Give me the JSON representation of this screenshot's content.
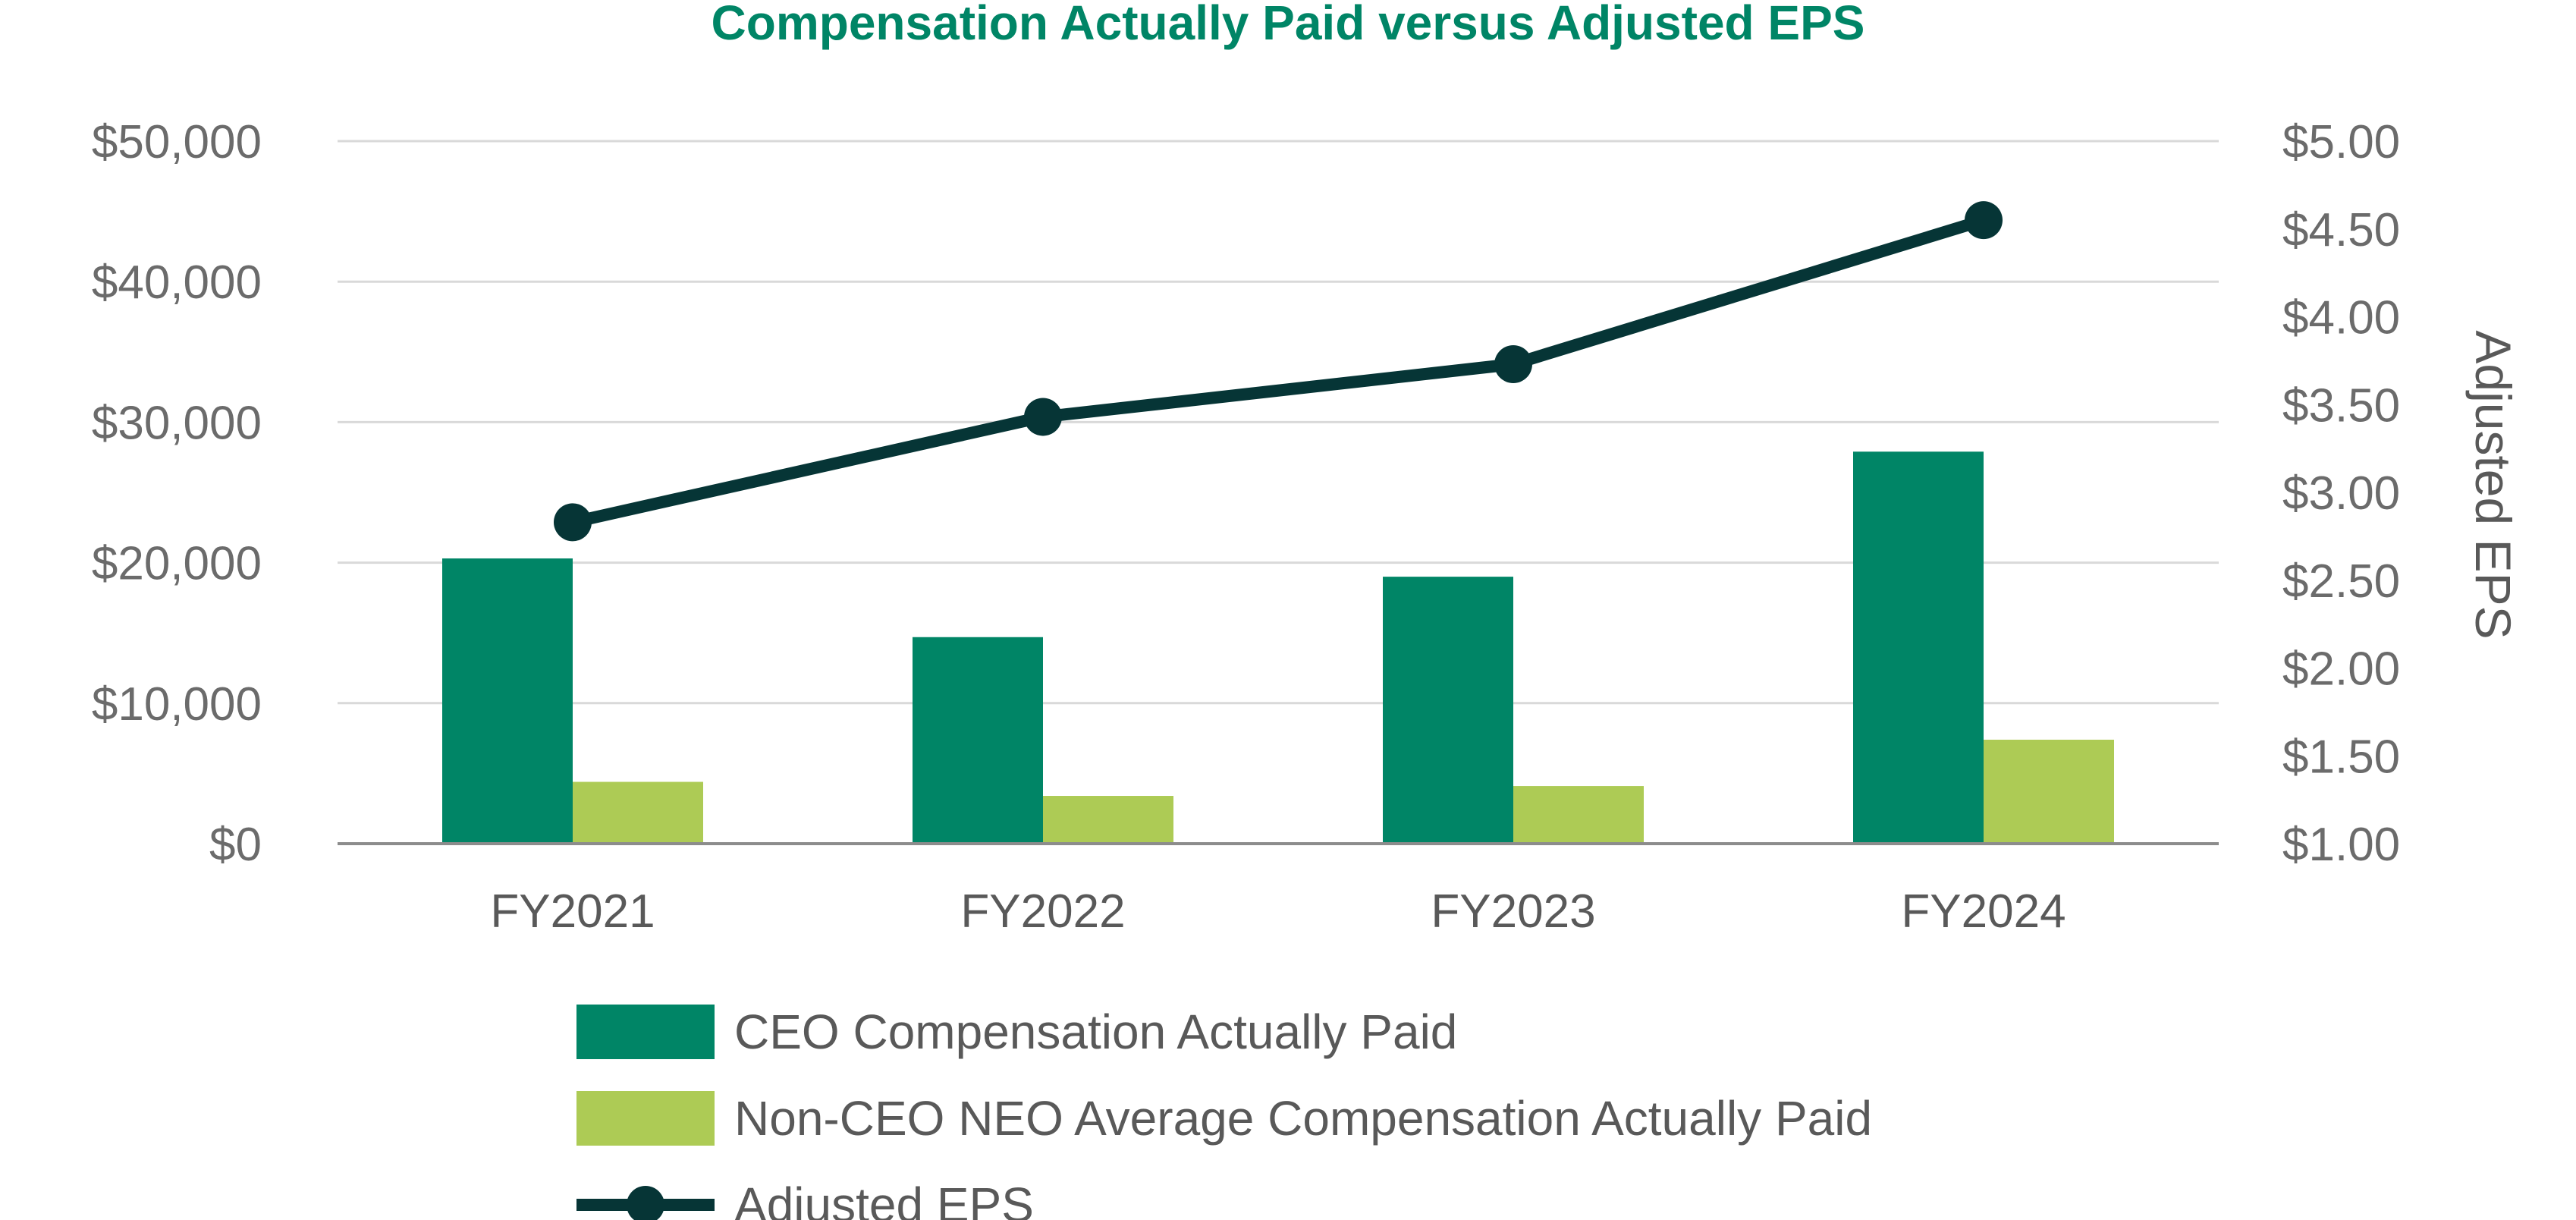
{
  "chart_data": {
    "type": "bar",
    "title": "Compensation Actually Paid versus Adjusted EPS",
    "categories": [
      "FY2021",
      "FY2022",
      "FY2023",
      "FY2024"
    ],
    "y_left": {
      "label": "",
      "ylim": [
        0,
        50000
      ],
      "tick_values": [
        0,
        10000,
        20000,
        30000,
        40000,
        50000
      ],
      "tick_labels": [
        "$0",
        "$10,000",
        "$20,000",
        "$30,000",
        "$40,000",
        "$50,000"
      ]
    },
    "y_right": {
      "label": "Adjusted EPS",
      "ylim": [
        1.0,
        5.0
      ],
      "tick_values": [
        1.0,
        1.5,
        2.0,
        2.5,
        3.0,
        3.5,
        4.0,
        4.5,
        5.0
      ],
      "tick_labels": [
        "$1.00",
        "$1.50",
        "$2.00",
        "$2.50",
        "$3.00",
        "$3.50",
        "$4.00",
        "$4.50",
        "$5.00"
      ]
    },
    "series": [
      {
        "name": "CEO Compensation Actually Paid",
        "type": "bar",
        "axis": "left",
        "color": "#008566",
        "values": [
          20300,
          14700,
          19000,
          27900
        ]
      },
      {
        "name": "Non-CEO NEO Average Compensation Actually Paid",
        "type": "bar",
        "axis": "left",
        "color": "#adcb55",
        "values": [
          4400,
          3400,
          4100,
          7400
        ]
      },
      {
        "name": "Adjusted EPS",
        "type": "line",
        "axis": "right",
        "color": "#063536",
        "values": [
          2.83,
          3.43,
          3.73,
          4.55
        ]
      }
    ],
    "grid": true,
    "legend_position": "bottom",
    "colors": {
      "title": "#008566",
      "grid": "#d9d9d9",
      "axis": "#8c8c8c"
    }
  }
}
